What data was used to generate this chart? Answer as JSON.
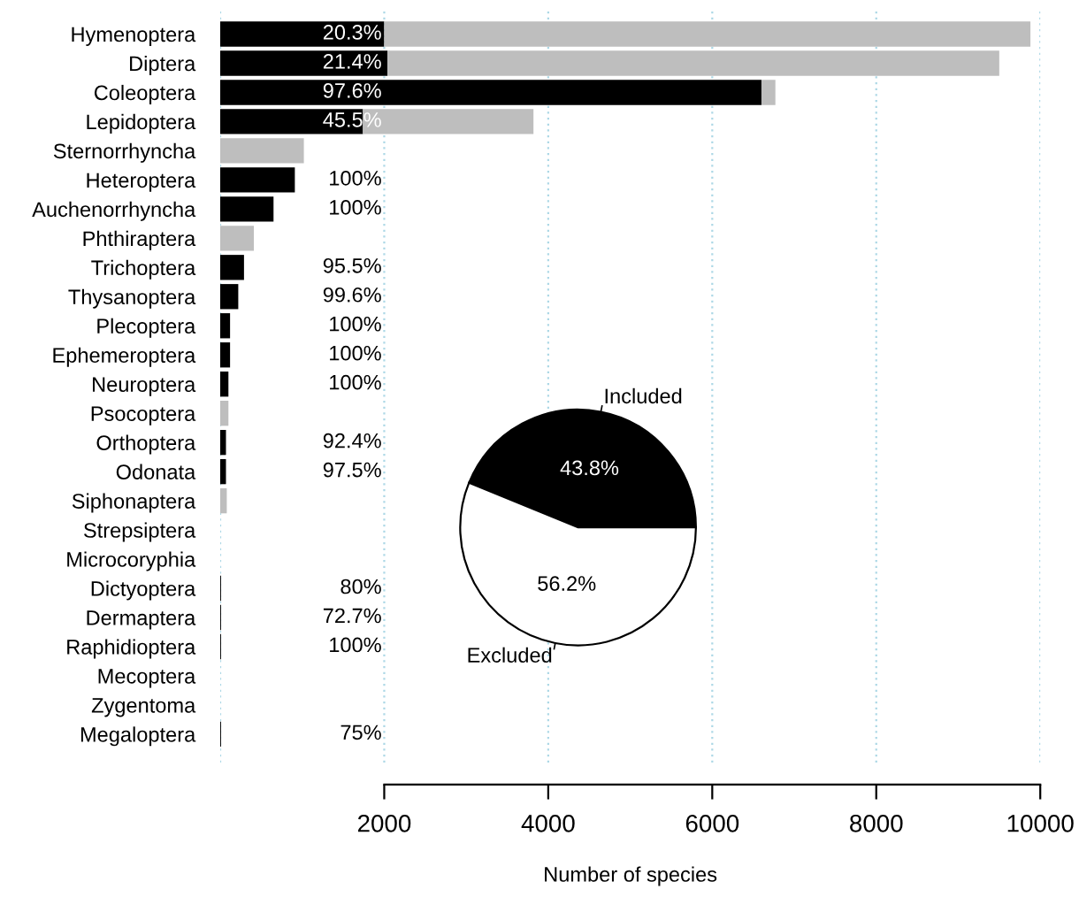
{
  "chart_data": [
    {
      "type": "bar",
      "orientation": "horizontal",
      "stacked": true,
      "xlabel": "Number of species",
      "categories": [
        "Hymenoptera",
        "Diptera",
        "Coleoptera",
        "Lepidoptera",
        "Sternorrhyncha",
        "Heteroptera",
        "Auchenorrhyncha",
        "Phthiraptera",
        "Trichoptera",
        "Thysanoptera",
        "Plecoptera",
        "Ephemeroptera",
        "Neuroptera",
        "Psocoptera",
        "Orthoptera",
        "Odonata",
        "Siphonaptera",
        "Strepsiptera",
        "Microcoryphia",
        "Dictyoptera",
        "Dermaptera",
        "Raphidioptera",
        "Mecoptera",
        "Zygentoma",
        "Megaloptera"
      ],
      "series": [
        {
          "color": "#000000",
          "values": [
            2000,
            2040,
            6600,
            1740,
            0,
            910,
            650,
            0,
            290,
            220,
            120,
            120,
            100,
            0,
            70,
            70,
            0,
            0,
            0,
            10,
            10,
            10,
            0,
            0,
            10
          ]
        },
        {
          "color": "#bebebe",
          "values": [
            7880,
            7460,
            170,
            2080,
            1020,
            0,
            0,
            410,
            null,
            0,
            0,
            0,
            0,
            100,
            0,
            0,
            80,
            0,
            0,
            0,
            0,
            0,
            0,
            0,
            0
          ]
        }
      ],
      "annotations": [
        "20.3%",
        "21.4%",
        "97.6%",
        "45.5%",
        null,
        "100%",
        "100%",
        null,
        "95.5%",
        "99.6%",
        "100%",
        "100%",
        "100%",
        null,
        "92.4%",
        "97.5%",
        null,
        null,
        null,
        "80%",
        "72.7%",
        "100%",
        null,
        null,
        "75%"
      ],
      "xlim": [
        0,
        10000
      ],
      "xticks": [
        2000,
        4000,
        6000,
        8000,
        10000
      ],
      "grid": "x"
    },
    {
      "type": "pie",
      "categories": [
        "Included",
        "Excluded"
      ],
      "values": [
        43.8,
        56.2
      ],
      "colors": [
        "#000000",
        "#ffffff"
      ],
      "value_labels": [
        "43.8%",
        "56.2%"
      ]
    }
  ]
}
